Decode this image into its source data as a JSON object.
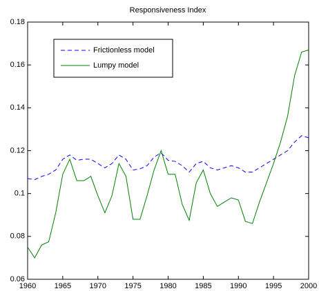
{
  "chart_data": {
    "type": "line",
    "title": "Responsiveness Index",
    "x": [
      1960,
      1961,
      1962,
      1963,
      1964,
      1965,
      1966,
      1967,
      1968,
      1969,
      1970,
      1971,
      1972,
      1973,
      1974,
      1975,
      1976,
      1977,
      1978,
      1979,
      1980,
      1981,
      1982,
      1983,
      1984,
      1985,
      1986,
      1987,
      1988,
      1989,
      1990,
      1991,
      1992,
      1993,
      1994,
      1995,
      1996,
      1997,
      1998,
      1999,
      2000
    ],
    "series": [
      {
        "name": "Frictionless model",
        "color": "#0000ff",
        "dashed": true,
        "values": [
          0.107,
          0.1065,
          0.108,
          0.109,
          0.111,
          0.116,
          0.118,
          0.1155,
          0.116,
          0.116,
          0.114,
          0.112,
          0.114,
          0.118,
          0.116,
          0.111,
          0.1115,
          0.113,
          0.117,
          0.119,
          0.1155,
          0.115,
          0.113,
          0.11,
          0.114,
          0.115,
          0.112,
          0.111,
          0.112,
          0.113,
          0.112,
          0.11,
          0.11,
          0.112,
          0.114,
          0.116,
          0.118,
          0.12,
          0.124,
          0.127,
          0.126
        ]
      },
      {
        "name": "Lumpy model",
        "color": "#008000",
        "dashed": false,
        "values": [
          0.075,
          0.07,
          0.076,
          0.0775,
          0.091,
          0.109,
          0.116,
          0.106,
          0.106,
          0.108,
          0.099,
          0.091,
          0.099,
          0.114,
          0.108,
          0.088,
          0.088,
          0.099,
          0.111,
          0.12,
          0.109,
          0.109,
          0.095,
          0.0875,
          0.105,
          0.111,
          0.1,
          0.094,
          0.096,
          0.098,
          0.097,
          0.087,
          0.086,
          0.096,
          0.105,
          0.114,
          0.124,
          0.136,
          0.155,
          0.166,
          0.167
        ]
      }
    ],
    "xlim": [
      1960,
      2000
    ],
    "xticks": [
      1960,
      1965,
      1970,
      1975,
      1980,
      1985,
      1990,
      1995,
      2000
    ],
    "ylim": [
      0.06,
      0.18
    ],
    "yticks": [
      0.06,
      0.08,
      0.1,
      0.12,
      0.14,
      0.16,
      0.18
    ],
    "grid": false,
    "legend": "upper left"
  }
}
